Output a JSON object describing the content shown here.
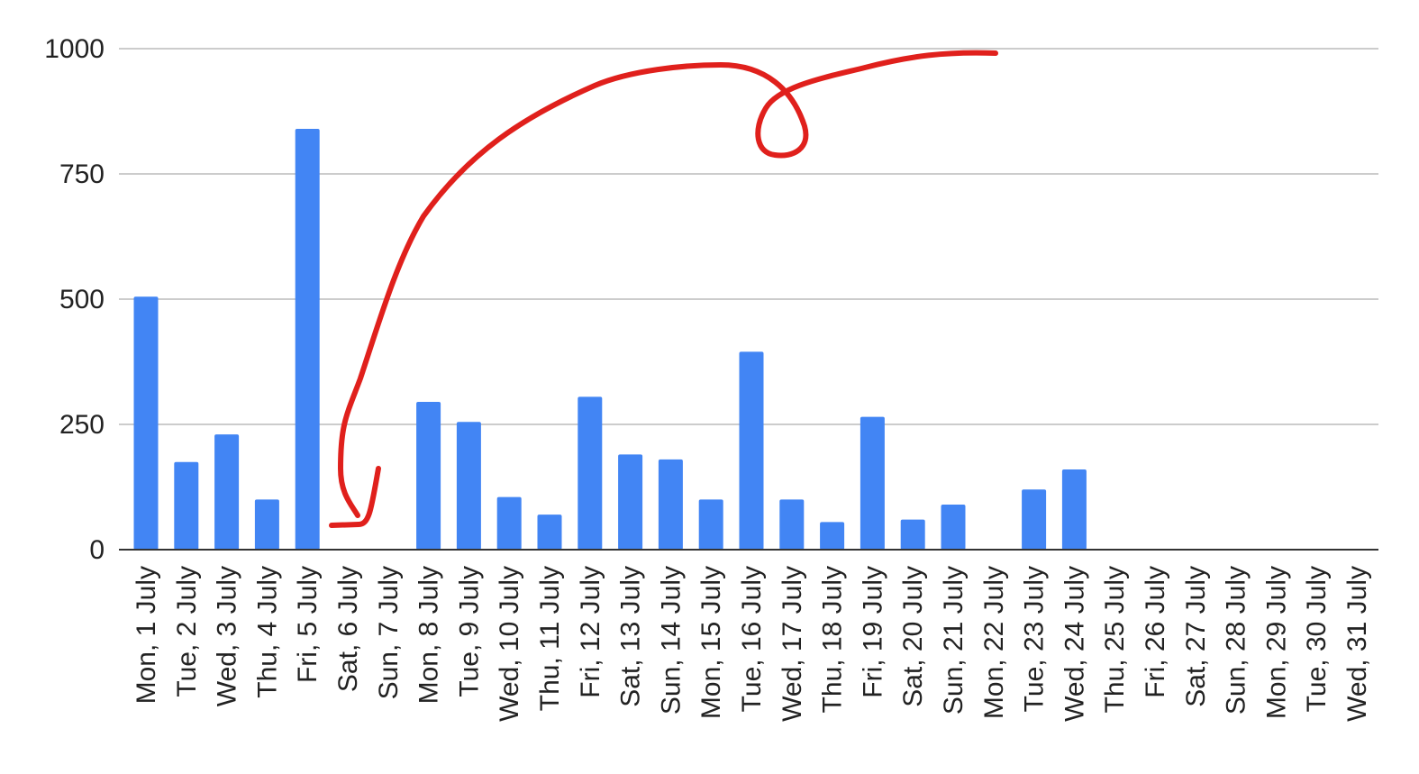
{
  "chart_data": {
    "type": "bar",
    "title": "",
    "xlabel": "",
    "ylabel": "",
    "ylim": [
      0,
      1000
    ],
    "yticks": [
      0,
      250,
      500,
      750,
      1000
    ],
    "grid": true,
    "legend": "none",
    "bar_color": "#4285f4",
    "categories": [
      "Mon, 1 July",
      "Tue, 2 July",
      "Wed, 3 July",
      "Thu, 4 July",
      "Fri, 5 July",
      "Sat, 6 July",
      "Sun, 7 July",
      "Mon, 8 July",
      "Tue, 9 July",
      "Wed, 10 July",
      "Thu, 11 July",
      "Fri, 12 July",
      "Sat, 13 July",
      "Sun, 14 July",
      "Mon, 15 July",
      "Tue, 16 July",
      "Wed, 17 July",
      "Thu, 18 July",
      "Fri, 19 July",
      "Sat, 20 July",
      "Sun, 21 July",
      "Mon, 22 July",
      "Tue, 23 July",
      "Wed, 24 July",
      "Thu, 25 July",
      "Fri, 26 July",
      "Sat, 27 July",
      "Sun, 28 July",
      "Mon, 29 July",
      "Tue, 30 July",
      "Wed, 31 July"
    ],
    "values": [
      505,
      175,
      230,
      100,
      840,
      0,
      0,
      295,
      255,
      105,
      70,
      305,
      190,
      180,
      100,
      395,
      100,
      55,
      265,
      60,
      90,
      0,
      120,
      160,
      0,
      0,
      0,
      0,
      0,
      0,
      0
    ],
    "annotation": {
      "type": "handwritten-arrow",
      "color": "#e0201c"
    }
  }
}
